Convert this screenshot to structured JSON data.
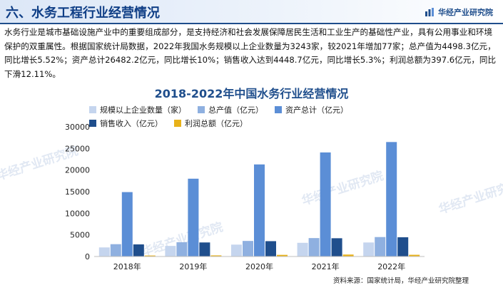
{
  "header": {
    "section_title": "六、水务工程行业经营情况",
    "brand": "华经产业研究院",
    "brand_logo_icon": "bar-logo-icon"
  },
  "intro_text": "水务行业是城市基础设施产业中的重要组成部分，是支持经济和社会发展保障居民生活和工业生产的基础性产业，具有公用事业和环境保护的双重属性。根据国家统计局数据，2022年我国水务规模以上企业数量为3243家，较2021年增加77家；总产值为4498.3亿元，同比增长5.52%；资产总计26482.2亿元，同比增长10%；销售收入达到4448.7亿元，同比增长5.3%；利润总额为397.6亿元，同比下滑12.11%。",
  "watermark_text": "华经产业研究院",
  "source": "资料来源：国家统计局，华经产业研究院整理",
  "colors": {
    "accent": "#1f4e8c",
    "series": [
      "#c5d5ee",
      "#8fb0e0",
      "#5b8ed6",
      "#1f4e8c",
      "#e8b21a"
    ]
  },
  "chart_data": {
    "type": "bar",
    "title": "2018-2022年中国水务行业经营情况",
    "categories": [
      "2018年",
      "2019年",
      "2020年",
      "2021年",
      "2022年"
    ],
    "ylim": [
      0,
      30000
    ],
    "yticks": [
      "0",
      "5000",
      "10000",
      "15000",
      "20000",
      "25000",
      "30000"
    ],
    "ytick_values": [
      0,
      5000,
      10000,
      15000,
      20000,
      25000,
      30000
    ],
    "grid": false,
    "legend_position": "top",
    "series": [
      {
        "name": "规模以上企业数量（家）",
        "values": [
          2100,
          2450,
          2750,
          3166,
          3243
        ]
      },
      {
        "name": "总产值（亿元）",
        "values": [
          2850,
          3300,
          3600,
          4263,
          4498.3
        ]
      },
      {
        "name": "资产总计（亿元）",
        "values": [
          14900,
          18000,
          21300,
          24075,
          26482.2
        ]
      },
      {
        "name": "销售收入（亿元）",
        "values": [
          2800,
          3250,
          3550,
          4225,
          4448.7
        ]
      },
      {
        "name": "利润总额（亿元）",
        "values": [
          230,
          260,
          380,
          452,
          397.6
        ]
      }
    ]
  }
}
